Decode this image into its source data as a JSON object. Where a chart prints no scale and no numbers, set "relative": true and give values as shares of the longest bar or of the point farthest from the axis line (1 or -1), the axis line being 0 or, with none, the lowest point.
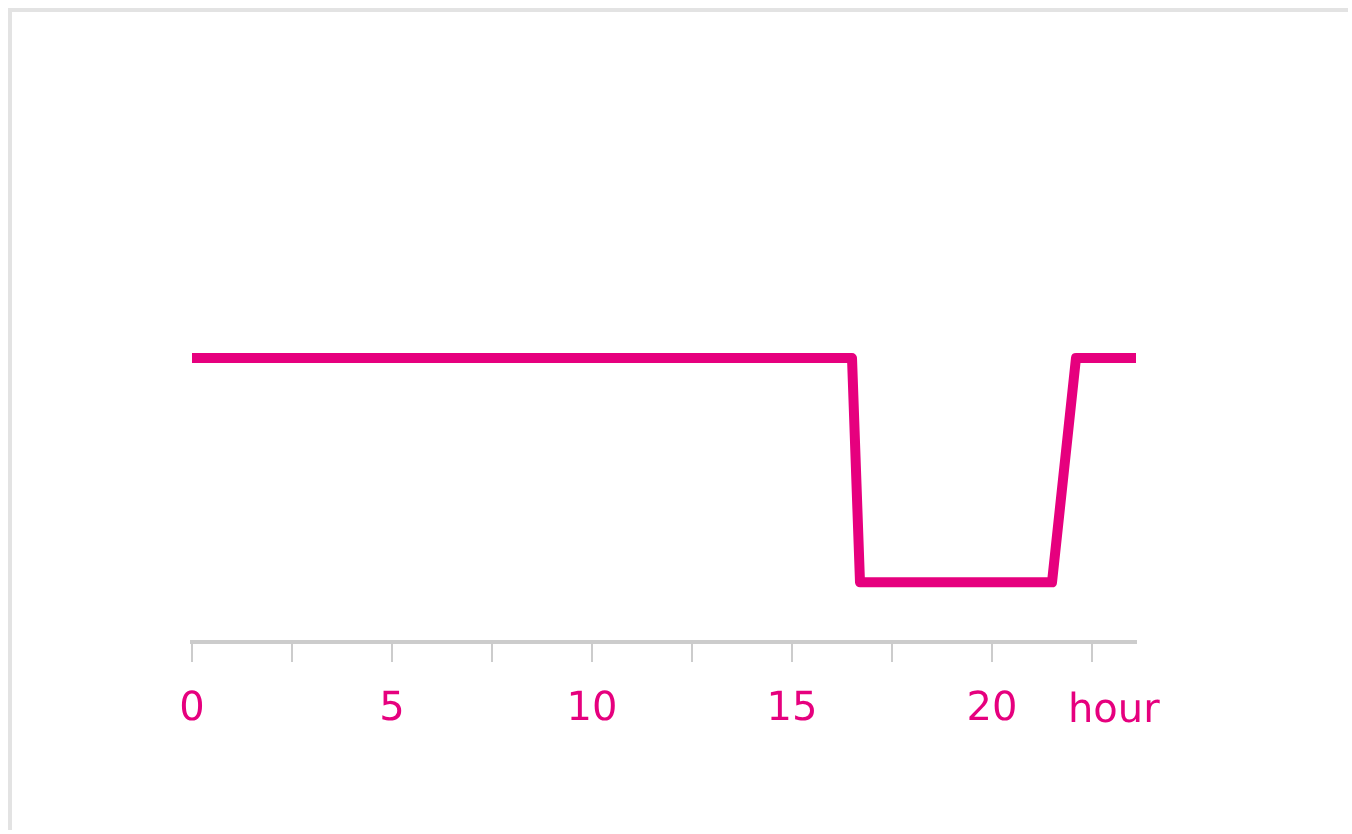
{
  "chart_data": {
    "type": "line",
    "relative": true,
    "xlabel": "hour",
    "x": [
      0,
      16.5,
      16.7,
      21.5,
      22.1,
      23.6
    ],
    "series": [
      {
        "color": "#e6007e",
        "values": [
          1,
          1,
          0.21,
          0.21,
          1,
          1
        ]
      }
    ],
    "xlim": [
      0,
      23.6
    ],
    "xticks": [
      0,
      {
        "value": 2.5,
        "label": null
      },
      5,
      {
        "value": 7.5,
        "label": null
      },
      10,
      {
        "value": 12.5,
        "label": null
      },
      15,
      {
        "value": 17.5,
        "label": null
      },
      20,
      {
        "value": 22.5,
        "label": null
      }
    ],
    "grid": false,
    "legend": false,
    "marker": "none",
    "line_style": "solid"
  }
}
